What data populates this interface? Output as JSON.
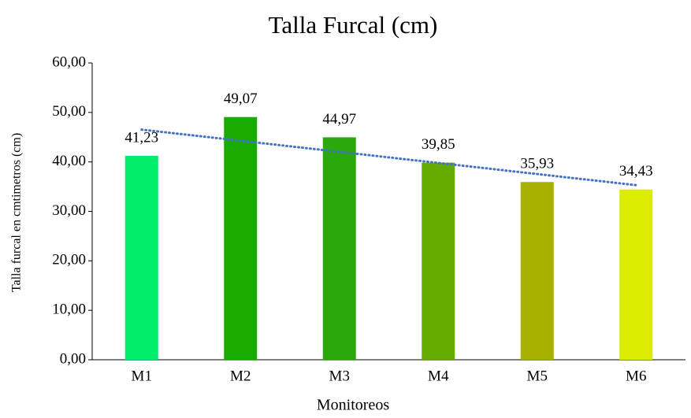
{
  "chart_data": {
    "type": "bar",
    "title": "Talla Furcal (cm)",
    "x_label": "Monitoreos",
    "y_label": "Talla furcal en cmtimetros (cm)",
    "categories": [
      "M1",
      "M2",
      "M3",
      "M4",
      "M5",
      "M6"
    ],
    "values": [
      41.23,
      49.07,
      44.97,
      39.85,
      35.93,
      34.43
    ],
    "value_labels": [
      "41,23",
      "49,07",
      "44,97",
      "39,85",
      "35,93",
      "34,43"
    ],
    "colors": [
      "#00ee6a",
      "#1aab00",
      "#2aa80c",
      "#66ab00",
      "#a8b000",
      "#dcec00"
    ],
    "ylim": [
      0,
      60
    ],
    "yticks": [
      {
        "value": 0,
        "label": "0,00"
      },
      {
        "value": 10,
        "label": "10,00"
      },
      {
        "value": 20,
        "label": "20,00"
      },
      {
        "value": 30,
        "label": "30,00"
      },
      {
        "value": 40,
        "label": "40,00"
      },
      {
        "value": 50,
        "label": "50,00"
      },
      {
        "value": 60,
        "label": "60,00"
      }
    ],
    "trendline": {
      "type": "linear",
      "color": "#4472c4"
    },
    "grid": false
  }
}
